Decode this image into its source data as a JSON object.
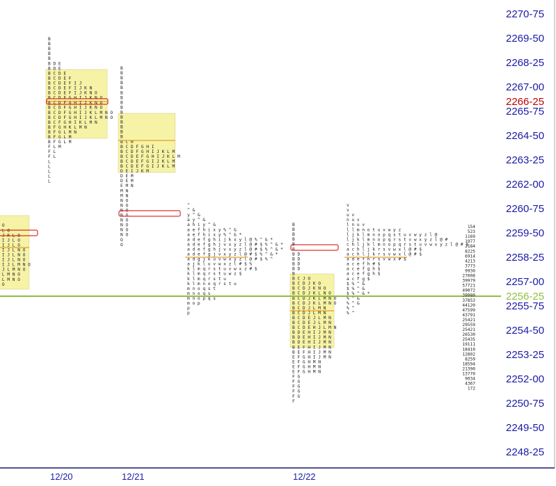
{
  "colors": {
    "value_area": "#f7f3a6",
    "poc_line": "#e08a00",
    "last_price_line": "#8fbf3f",
    "ib_box": "#d00000",
    "axis_text": "#1a1aa6",
    "current_price_text": "#c00000"
  },
  "price_axis": {
    "labels": [
      "2270-75",
      "2269-50",
      "2268-25",
      "2267-00",
      "2265-75",
      "2264-50",
      "2263-25",
      "2262-00",
      "2260-75",
      "2259-50",
      "2258-25",
      "2257-00",
      "2255-75",
      "2254-50",
      "2253-25",
      "2252-00",
      "2250-75",
      "2249-50",
      "2248-25"
    ],
    "current_price": "2266-25",
    "last_price": "2256-25"
  },
  "dates": [
    "12/20",
    "12/21",
    "12/22"
  ],
  "chart_data": {
    "type": "market-profile",
    "x_labels": [
      "12/20",
      "12/21",
      "12/22"
    ],
    "y_range": [
      "2248-25",
      "2270-75"
    ],
    "tick_size": "0-25",
    "current_price": "2266-25",
    "last_price": "2256-25",
    "profiles": [
      {
        "id": "p0",
        "value_area": [
          "2256-75",
          "2260-25"
        ],
        "poc": "2258-75",
        "ib_marker": "2259-50",
        "rows": [
          "J",
          "J",
          "J",
          "K",
          "K L O",
          "J K L O",
          "B I J K L O",
          "G H I J L O",
          "G H I J L O",
          "G H I J L N O",
          "G H I J L N O",
          "G H I J L N O",
          "G H I J L M N O",
          "G I J L M N O",
          "I J L M N O",
          "I J L M N O",
          "M N O",
          "N O",
          "N"
        ]
      },
      {
        "id": "p1",
        "date": "12/20",
        "value_area": [
          "2264-50",
          "2267-75"
        ],
        "poc": "2266-25",
        "ib_marker": "2266-25",
        "rows": [
          "B",
          "B",
          "B",
          "B",
          "B",
          "B D E",
          "B D E",
          "B C D E",
          "B C D E F",
          "B C D E F I J",
          "B C D E F I J K N",
          "B C D E F I J K N O",
          "B C D F G H I J K N O",
          "B C D F G H I J K N O",
          "B C D F G H I J K N O",
          "B C D F G H I J K L M N O",
          "B C D F G H I J K L M N O",
          "B C F G H I K L M N",
          "B F G H K L M N",
          "B F G L M N",
          "B F G L M",
          "B F G L M",
          "F L M",
          "F L",
          "F L",
          "L",
          "L",
          "L",
          "L",
          "L"
        ]
      },
      {
        "id": "p2",
        "date": "12/21",
        "value_area": [
          "2262-75",
          "2265-50"
        ],
        "poc": "2264-25",
        "ib_marker": "2260-50",
        "rows": [
          "B",
          "B",
          "B",
          "B",
          "B",
          "B",
          "B",
          "B",
          "B",
          "B",
          "B",
          "B",
          "B",
          "B",
          "B",
          "B C H",
          "B C D F G H I",
          "B C D F G H I J K L M",
          "B C D E F G H I J K L M",
          "B C D E F G I J K L M",
          "B C D E F G I J K L M",
          "D E I J K M",
          "D E M",
          "D E M",
          "E M N",
          "M N",
          "M N",
          "N O",
          "N O",
          "N O",
          "N O",
          "N O",
          "N O",
          "N O",
          "N O",
          "O",
          "O"
        ]
      },
      {
        "id": "p3",
        "value_area": [
          "2258-25",
          "2258-25"
        ],
        "poc": "2258-25",
        "ib_marker": "",
        "rows": [
          "^",
          "^ &",
          "y ^ &",
          "a y ^ &",
          "a h i y ^ &",
          "a e f h i x y % ^ &",
          "a e f h i x y % ^ & *",
          "a d e f g h i j k x y l @ % ^ & *",
          "a d e f g h j v x y z l @ # $ % ^ & *",
          "a d e f g h j v x y z l @ # $ % ^ & *",
          "a d e f g j v x y z l @ # $ % ^ & *",
          "a d g j k u v w x y z l @ # $ % ^",
          "a j k l u v w x z l # $ %",
          "k l m q r s t u v w x z # $",
          "k l m q r s t u w z $",
          "k l m q r s t u",
          "k l m n o q r s t u",
          "m n o q s t",
          "m n o q s",
          "m n o p q s",
          "m o p",
          "p",
          "p"
        ]
      },
      {
        "id": "p4",
        "date": "12/22",
        "value_area": [
          "2253-75",
          "2257-25"
        ],
        "poc": "2255-50",
        "ib_marker": "2258-75",
        "rows": [
          "B",
          "B",
          "B",
          "B",
          "B",
          "B",
          "B D",
          "B D",
          "B D",
          "B D",
          "B",
          "B C J O",
          "B C D J K O",
          "B C D J K N O",
          "B C D J K L N O",
          "B C D J K L M N O",
          "B C D J K L M N O",
          "B C D J L M N",
          "B C D J L M N",
          "B C D E J L M N",
          "B C D E J L M N",
          "B C D E H J L M N",
          "B D E H I J M N",
          "B D E H I J M N",
          "B D E H I J M N",
          "B E F H I J M N",
          "B E F H I J M N",
          "E F G H I J M N",
          "E F G H M N",
          "E F G H M N",
          "E F G H M N",
          "F G",
          "F G",
          "F G",
          "F G",
          "F G",
          "F"
        ]
      },
      {
        "id": "p5",
        "value_area": [
          "2258-25",
          "2258-25"
        ],
        "poc": "2258-25",
        "ib_marker": "",
        "rows": [
          "v",
          "v",
          "u v",
          "n u v",
          "l n u v",
          "l l m n o t u v w y z",
          "l j k l m n o p q s t u v w y z l @",
          "l j k l m n o p q r s t v w x y z l @ #",
          "c h l j k l m n o p q r s t u v w x y z l @ # $",
          "a c h l j k r s v w x l @ # $",
          "a c h l j k r s v w x l @ # $",
          "a d e f h r s v w x # $",
          "a c e f h # $",
          "a c e f g h $",
          "a c e f g h $",
          "a c f g $",
          "$ % ^ &",
          "$ % ^ &",
          "$ % ^ & *",
          "% ^ &",
          "% ^ &",
          "% ^",
          "% ^"
        ]
      }
    ],
    "volume_ladder": [
      "154",
      "523",
      "1169",
      "1977",
      "2184",
      "8225",
      "6914",
      "4213",
      "3773",
      "9930",
      "27008",
      "39979",
      "57721",
      "49072",
      "39980",
      "37853",
      "44120",
      "47599",
      "43791",
      "25421",
      "29559",
      "25421",
      "26530",
      "25435",
      "19111",
      "18410",
      "12802",
      "8259",
      "18594",
      "21390",
      "13770",
      "9034",
      "4367",
      "172"
    ]
  }
}
